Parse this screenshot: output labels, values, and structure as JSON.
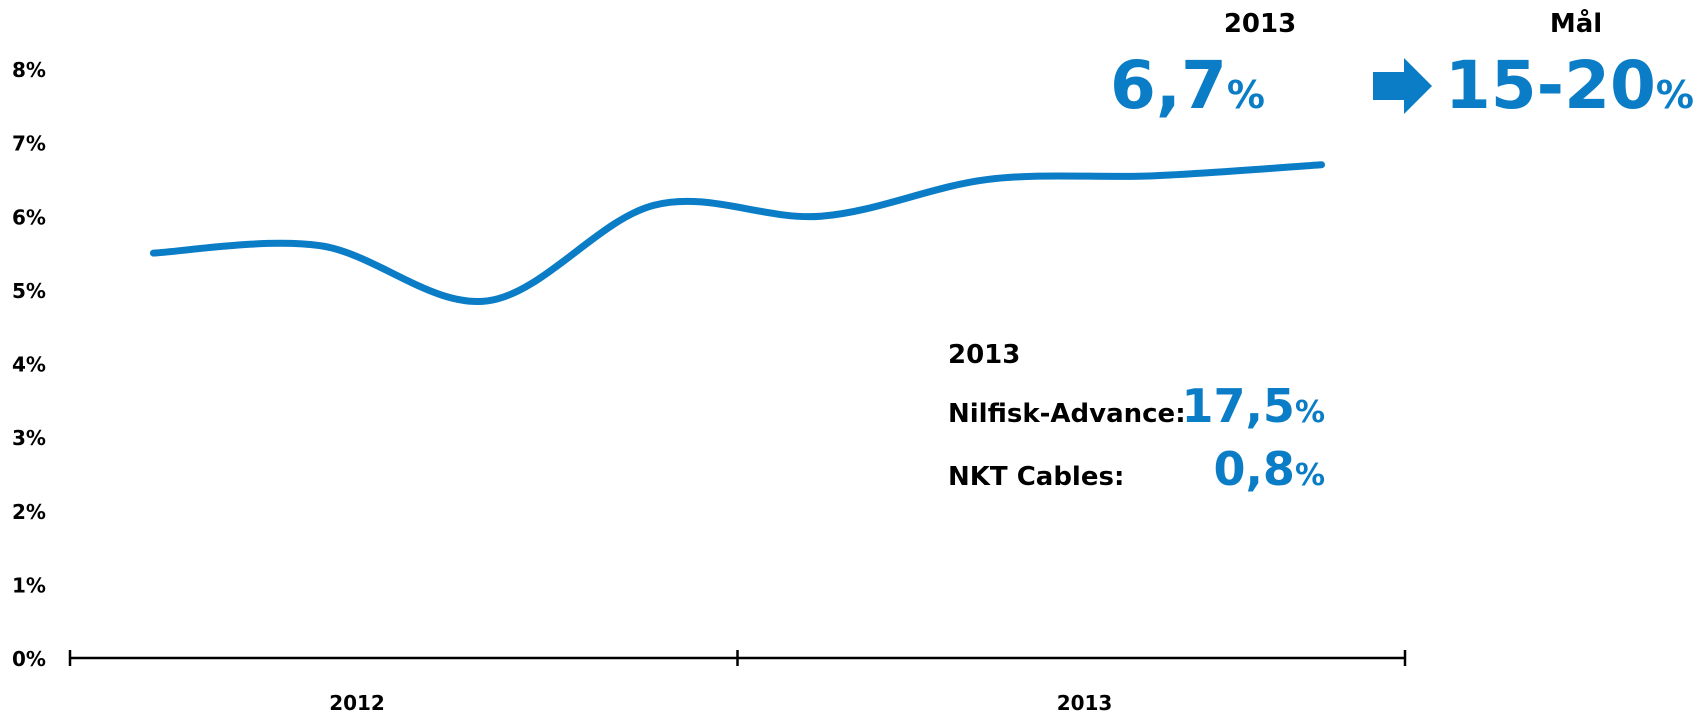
{
  "chart_data": {
    "type": "line",
    "categories": [
      null,
      null,
      null,
      null,
      null,
      null,
      null,
      null
    ],
    "x_groups": [
      "2012",
      "2013"
    ],
    "series": [
      {
        "color": "#0b7dc6",
        "values": [
          5.5,
          5.6,
          4.85,
          6.15,
          6.0,
          6.5,
          6.55,
          6.7
        ]
      }
    ],
    "ylim": [
      0,
      8
    ],
    "yticks": [
      {
        "value": 0,
        "label": "0%"
      },
      {
        "value": 1,
        "label": "1%"
      },
      {
        "value": 2,
        "label": "2%"
      },
      {
        "value": 3,
        "label": "3%"
      },
      {
        "value": 4,
        "label": "4%"
      },
      {
        "value": 5,
        "label": "5%"
      },
      {
        "value": 6,
        "label": "6%"
      },
      {
        "value": 7,
        "label": "7%"
      },
      {
        "value": 8,
        "label": "8%"
      }
    ],
    "annotations": {
      "current": {
        "label": "2013",
        "value": "6,7",
        "unit": "%"
      },
      "target": {
        "label": "Mål",
        "value": "15-20",
        "unit": "%"
      },
      "breakdown": {
        "title": "2013",
        "rows": [
          {
            "name": "Nilfisk-Advance:",
            "value": "17,5",
            "unit": "%"
          },
          {
            "name": "NKT Cables:",
            "value": "0,8",
            "unit": "%"
          }
        ]
      }
    }
  }
}
